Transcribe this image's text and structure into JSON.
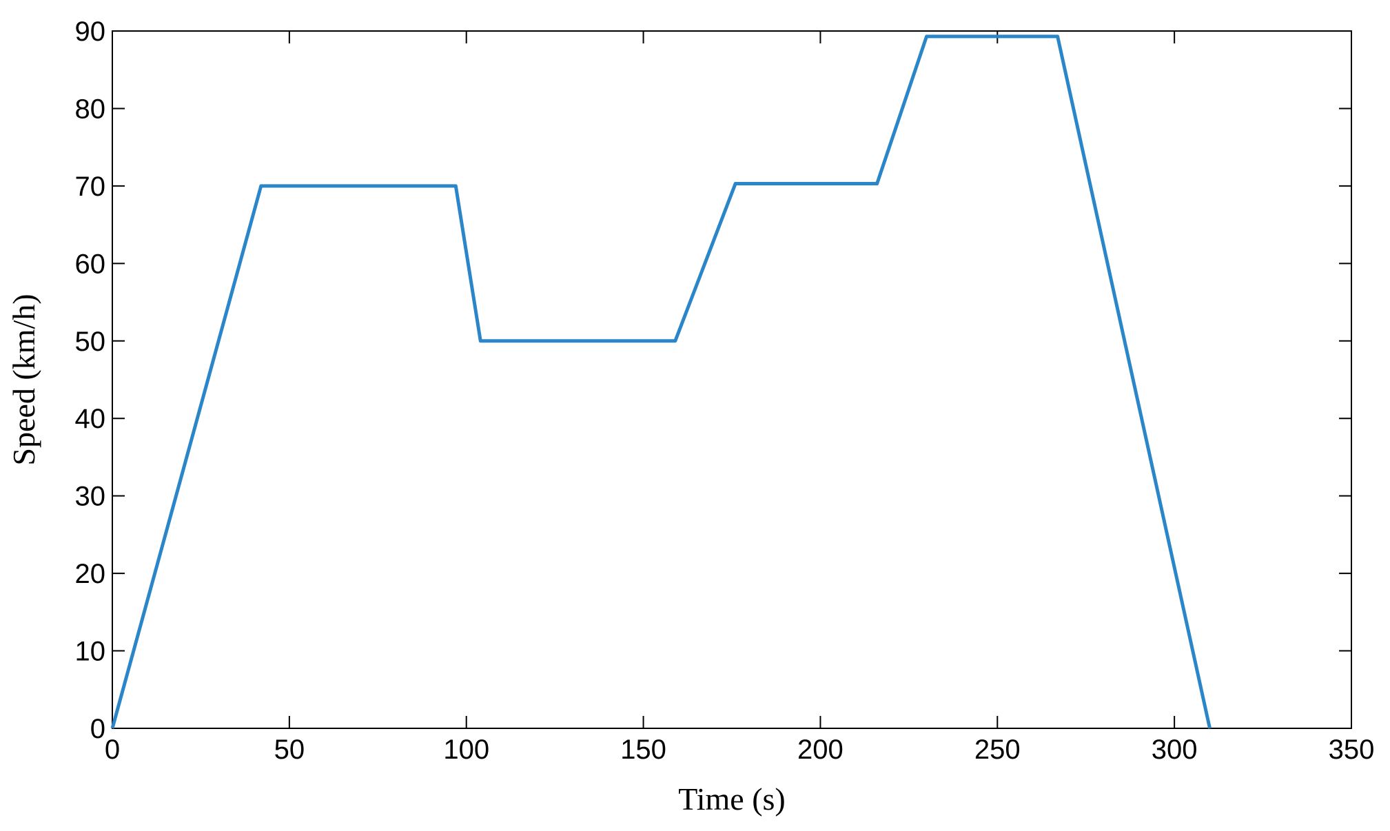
{
  "chart_data": {
    "type": "line",
    "x_label": "Time (s)",
    "y_label": "Speed (km/h)",
    "x": [
      0,
      42,
      97,
      104,
      159,
      176,
      216,
      230,
      267,
      310
    ],
    "values": [
      0,
      70,
      70,
      50,
      50,
      70.3,
      70.3,
      89.3,
      89.3,
      0
    ],
    "color": "#2a86c8",
    "xlim": [
      0,
      350
    ],
    "xticks": [
      0,
      50,
      100,
      150,
      200,
      250,
      300,
      350
    ],
    "ylim": [
      0,
      90
    ],
    "yticks": [
      0,
      10,
      20,
      30,
      40,
      50,
      60,
      70,
      80,
      90
    ],
    "grid": false
  }
}
